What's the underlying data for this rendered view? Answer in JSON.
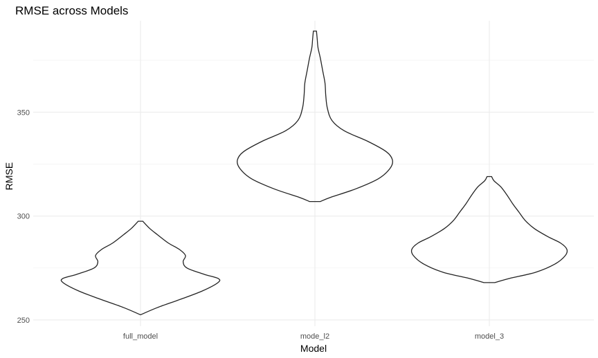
{
  "chart_data": {
    "type": "violin",
    "title": "RMSE across Models",
    "xlabel": "Model",
    "ylabel": "RMSE",
    "categories": [
      "full_model",
      "mode_l2",
      "model_3"
    ],
    "ylim": [
      247,
      394
    ],
    "yticks": [
      250,
      300,
      350
    ],
    "grid": true,
    "series": [
      {
        "category": "full_model",
        "min": 252.5,
        "max": 297.5,
        "density": [
          [
            252.5,
            0.0
          ],
          [
            256,
            0.22
          ],
          [
            260,
            0.52
          ],
          [
            264,
            0.8
          ],
          [
            268,
            1.0
          ],
          [
            270,
            1.0
          ],
          [
            272,
            0.82
          ],
          [
            275,
            0.6
          ],
          [
            278,
            0.55
          ],
          [
            281,
            0.58
          ],
          [
            284,
            0.5
          ],
          [
            287,
            0.36
          ],
          [
            291,
            0.22
          ],
          [
            294,
            0.12
          ],
          [
            297.5,
            0.03
          ]
        ]
      },
      {
        "category": "mode_l2",
        "min": 307,
        "max": 389,
        "density": [
          [
            307,
            0.07
          ],
          [
            309,
            0.2
          ],
          [
            313,
            0.52
          ],
          [
            318,
            0.82
          ],
          [
            323,
            0.97
          ],
          [
            327,
            1.0
          ],
          [
            331,
            0.92
          ],
          [
            336,
            0.68
          ],
          [
            341,
            0.38
          ],
          [
            346,
            0.22
          ],
          [
            352,
            0.16
          ],
          [
            358,
            0.14
          ],
          [
            364,
            0.13
          ],
          [
            370,
            0.1
          ],
          [
            376,
            0.07
          ],
          [
            381,
            0.04
          ],
          [
            385,
            0.03
          ],
          [
            389,
            0.02
          ]
        ]
      },
      {
        "category": "model_3",
        "min": 268,
        "max": 319,
        "density": [
          [
            268,
            0.07
          ],
          [
            270,
            0.26
          ],
          [
            273,
            0.6
          ],
          [
            277,
            0.85
          ],
          [
            281,
            0.98
          ],
          [
            284,
            1.0
          ],
          [
            287,
            0.92
          ],
          [
            290,
            0.76
          ],
          [
            294,
            0.58
          ],
          [
            298,
            0.46
          ],
          [
            302,
            0.38
          ],
          [
            306,
            0.3
          ],
          [
            310,
            0.23
          ],
          [
            314,
            0.15
          ],
          [
            317,
            0.06
          ],
          [
            319,
            0.03
          ]
        ]
      }
    ]
  }
}
